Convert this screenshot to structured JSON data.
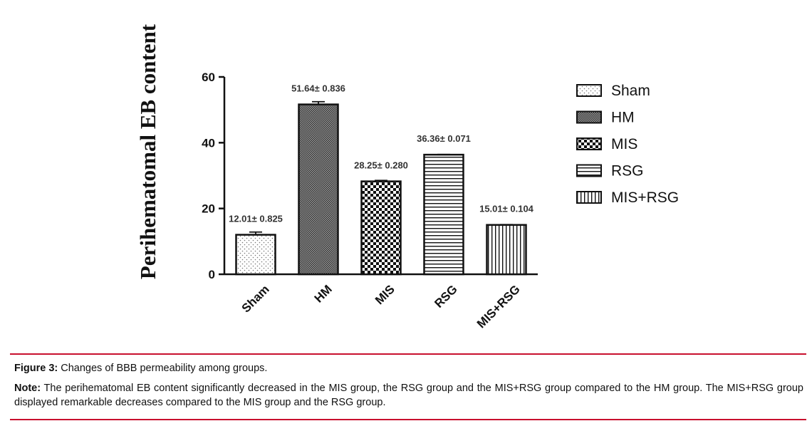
{
  "chart_data": {
    "type": "bar",
    "ylabel": "Perihematomal EB content",
    "xlabel": "",
    "ylim": [
      0,
      60
    ],
    "yticks": [
      0,
      20,
      40,
      60
    ],
    "categories": [
      "Sham",
      "HM",
      "MIS",
      "RSG",
      "MIS+RSG"
    ],
    "values": [
      12.01,
      51.64,
      28.25,
      36.36,
      15.01
    ],
    "errors": [
      0.825,
      0.836,
      0.28,
      0.071,
      0.104
    ],
    "data_labels": [
      "12.01± 0.825",
      "51.64± 0.836",
      "28.25± 0.280",
      "36.36± 0.071",
      "15.01± 0.104"
    ],
    "patterns": [
      "dots",
      "fine-crosshatch",
      "checker",
      "horizontal-lines",
      "vertical-lines"
    ],
    "legend": {
      "position": "right",
      "entries": [
        "Sham",
        "HM",
        "MIS",
        "RSG",
        "MIS+RSG"
      ]
    },
    "grid": false
  },
  "caption": {
    "figure_label": "Figure 3:",
    "figure_text": " Changes of BBB permeability among groups.",
    "note_label": "Note:",
    "note_text": " The perihematomal EB content significantly decreased in the MIS group, the RSG group and the MIS+RSG group compared to the HM group. The MIS+RSG group displayed remarkable decreases compared to the MIS group and the RSG group."
  },
  "colors": {
    "rule": "#c8102e",
    "ink": "#111111"
  }
}
